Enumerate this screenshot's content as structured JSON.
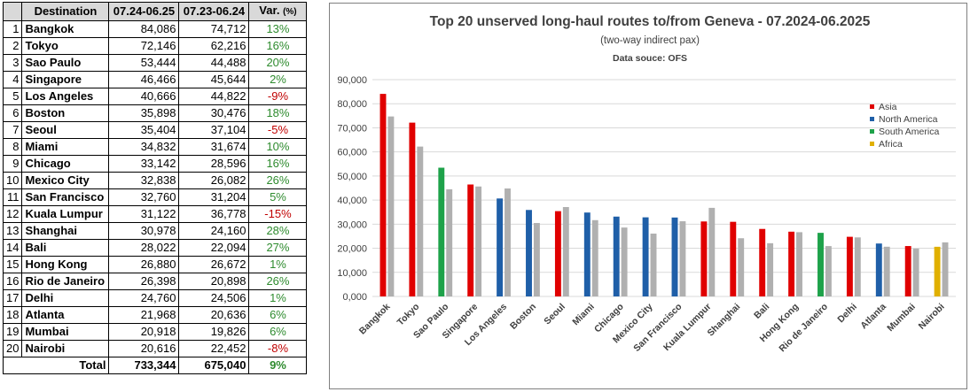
{
  "table": {
    "headers": [
      "Destination",
      "07.24-06.25",
      "07.23-06.24",
      "Var."
    ],
    "var_unit": "(%)",
    "rows": [
      {
        "rank": "1",
        "name": "Bangkok",
        "cur": "84,086",
        "prev": "74,712",
        "var": "13%",
        "neg": false
      },
      {
        "rank": "2",
        "name": "Tokyo",
        "cur": "72,146",
        "prev": "62,216",
        "var": "16%",
        "neg": false
      },
      {
        "rank": "3",
        "name": "Sao Paulo",
        "cur": "53,444",
        "prev": "44,488",
        "var": "20%",
        "neg": false
      },
      {
        "rank": "4",
        "name": "Singapore",
        "cur": "46,466",
        "prev": "45,644",
        "var": "2%",
        "neg": false
      },
      {
        "rank": "5",
        "name": "Los Angeles",
        "cur": "40,666",
        "prev": "44,822",
        "var": "-9%",
        "neg": true
      },
      {
        "rank": "6",
        "name": "Boston",
        "cur": "35,898",
        "prev": "30,476",
        "var": "18%",
        "neg": false
      },
      {
        "rank": "7",
        "name": "Seoul",
        "cur": "35,404",
        "prev": "37,104",
        "var": "-5%",
        "neg": true
      },
      {
        "rank": "8",
        "name": "Miami",
        "cur": "34,832",
        "prev": "31,674",
        "var": "10%",
        "neg": false
      },
      {
        "rank": "9",
        "name": "Chicago",
        "cur": "33,142",
        "prev": "28,596",
        "var": "16%",
        "neg": false
      },
      {
        "rank": "10",
        "name": "Mexico City",
        "cur": "32,838",
        "prev": "26,082",
        "var": "26%",
        "neg": false
      },
      {
        "rank": "11",
        "name": "San Francisco",
        "cur": "32,760",
        "prev": "31,204",
        "var": "5%",
        "neg": false
      },
      {
        "rank": "12",
        "name": "Kuala Lumpur",
        "cur": "31,122",
        "prev": "36,778",
        "var": "-15%",
        "neg": true
      },
      {
        "rank": "13",
        "name": "Shanghai",
        "cur": "30,978",
        "prev": "24,160",
        "var": "28%",
        "neg": false
      },
      {
        "rank": "14",
        "name": "Bali",
        "cur": "28,022",
        "prev": "22,094",
        "var": "27%",
        "neg": false
      },
      {
        "rank": "15",
        "name": "Hong Kong",
        "cur": "26,880",
        "prev": "26,672",
        "var": "1%",
        "neg": false
      },
      {
        "rank": "16",
        "name": "Rio de Janeiro",
        "cur": "26,398",
        "prev": "20,898",
        "var": "26%",
        "neg": false
      },
      {
        "rank": "17",
        "name": "Delhi",
        "cur": "24,760",
        "prev": "24,506",
        "var": "1%",
        "neg": false
      },
      {
        "rank": "18",
        "name": "Atlanta",
        "cur": "21,968",
        "prev": "20,636",
        "var": "6%",
        "neg": false
      },
      {
        "rank": "19",
        "name": "Mumbai",
        "cur": "20,918",
        "prev": "19,826",
        "var": "6%",
        "neg": false
      },
      {
        "rank": "20",
        "name": "Nairobi",
        "cur": "20,616",
        "prev": "22,452",
        "var": "-8%",
        "neg": true
      }
    ],
    "total": {
      "label": "Total",
      "cur": "733,344",
      "prev": "675,040",
      "var": "9%"
    }
  },
  "chart_data": {
    "type": "bar",
    "title": "Top 20 unserved long-haul routes to/from Geneva - 07.2024-06.2025",
    "subtitle": "(two-way indirect pax)",
    "note": "Data souce: OFS",
    "categories": [
      "Bangkok",
      "Tokyo",
      "Sao Paulo",
      "Singapore",
      "Los Angeles",
      "Boston",
      "Seoul",
      "Miami",
      "Chicago",
      "Mexico City",
      "San Francisco",
      "Kuala Lumpur",
      "Shanghai",
      "Bali",
      "Hong Kong",
      "Rio de Janeiro",
      "Delhi",
      "Atlanta",
      "Mumbai",
      "Nairobi"
    ],
    "series": [
      {
        "values": [
          84086,
          72146,
          53444,
          46466,
          40666,
          35898,
          35404,
          34832,
          33142,
          32838,
          32760,
          31122,
          30978,
          28022,
          26880,
          26398,
          24760,
          21968,
          20918,
          20616
        ]
      },
      {
        "values": [
          74712,
          62216,
          44488,
          45644,
          44822,
          30476,
          37104,
          31674,
          28596,
          26082,
          31204,
          36778,
          24160,
          22094,
          26672,
          20898,
          24506,
          20636,
          19826,
          22452
        ]
      }
    ],
    "regions": [
      "Asia",
      "Asia",
      "South America",
      "Asia",
      "North America",
      "North America",
      "Asia",
      "North America",
      "North America",
      "North America",
      "North America",
      "Asia",
      "Asia",
      "Asia",
      "Asia",
      "South America",
      "Asia",
      "North America",
      "Asia",
      "Africa"
    ],
    "legend": [
      {
        "name": "Asia",
        "color": "#e00000"
      },
      {
        "name": "North America",
        "color": "#1f5fa8"
      },
      {
        "name": "South America",
        "color": "#1ea24a"
      },
      {
        "name": "Africa",
        "color": "#e0b000"
      }
    ],
    "legend_position": "right",
    "prev_color": "#b0b0b0",
    "ylim": [
      0,
      90000
    ],
    "yticks": [
      "0,000",
      "10,000",
      "20,000",
      "30,000",
      "40,000",
      "50,000",
      "60,000",
      "70,000",
      "80,000",
      "90,000"
    ],
    "grid": true
  }
}
